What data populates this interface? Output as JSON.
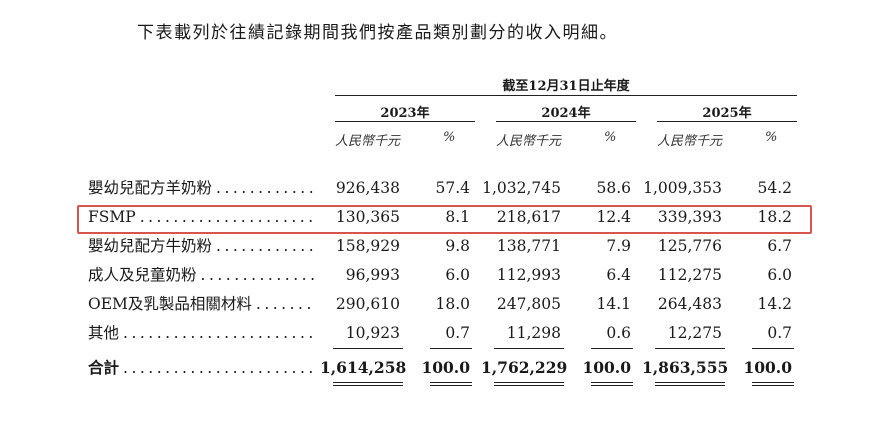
{
  "intro_text": "下表載列於往績記錄期間我們按產品類別劃分的收入明細。",
  "period_heading": "截至12月31日止年度",
  "years": [
    "2023年",
    "2024年",
    "2025年"
  ],
  "sub_headers": {
    "currency": "人民幣千元",
    "percent": "%"
  },
  "rows": [
    {
      "label": "嬰幼兒配方羊奶粉",
      "values": [
        "926,438",
        "57.4",
        "1,032,745",
        "58.6",
        "1,009,353",
        "54.2"
      ]
    },
    {
      "label": "FSMP",
      "values": [
        "130,365",
        "8.1",
        "218,617",
        "12.4",
        "339,393",
        "18.2"
      ]
    },
    {
      "label": "嬰幼兒配方牛奶粉",
      "values": [
        "158,929",
        "9.8",
        "138,771",
        "7.9",
        "125,776",
        "6.7"
      ]
    },
    {
      "label": "成人及兒童奶粉",
      "values": [
        "96,993",
        "6.0",
        "112,993",
        "6.4",
        "112,275",
        "6.0"
      ]
    },
    {
      "label": "OEM及乳製品相關材料",
      "values": [
        "290,610",
        "18.0",
        "247,805",
        "14.1",
        "264,483",
        "14.2"
      ]
    },
    {
      "label": "其他",
      "values": [
        "10,923",
        "0.7",
        "11,298",
        "0.6",
        "12,275",
        "0.7"
      ]
    }
  ],
  "total": {
    "label": "合計",
    "values": [
      "1,614,258",
      "100.0",
      "1,762,229",
      "100.0",
      "1,863,555",
      "100.0"
    ]
  },
  "highlight_color": "#d9534f"
}
